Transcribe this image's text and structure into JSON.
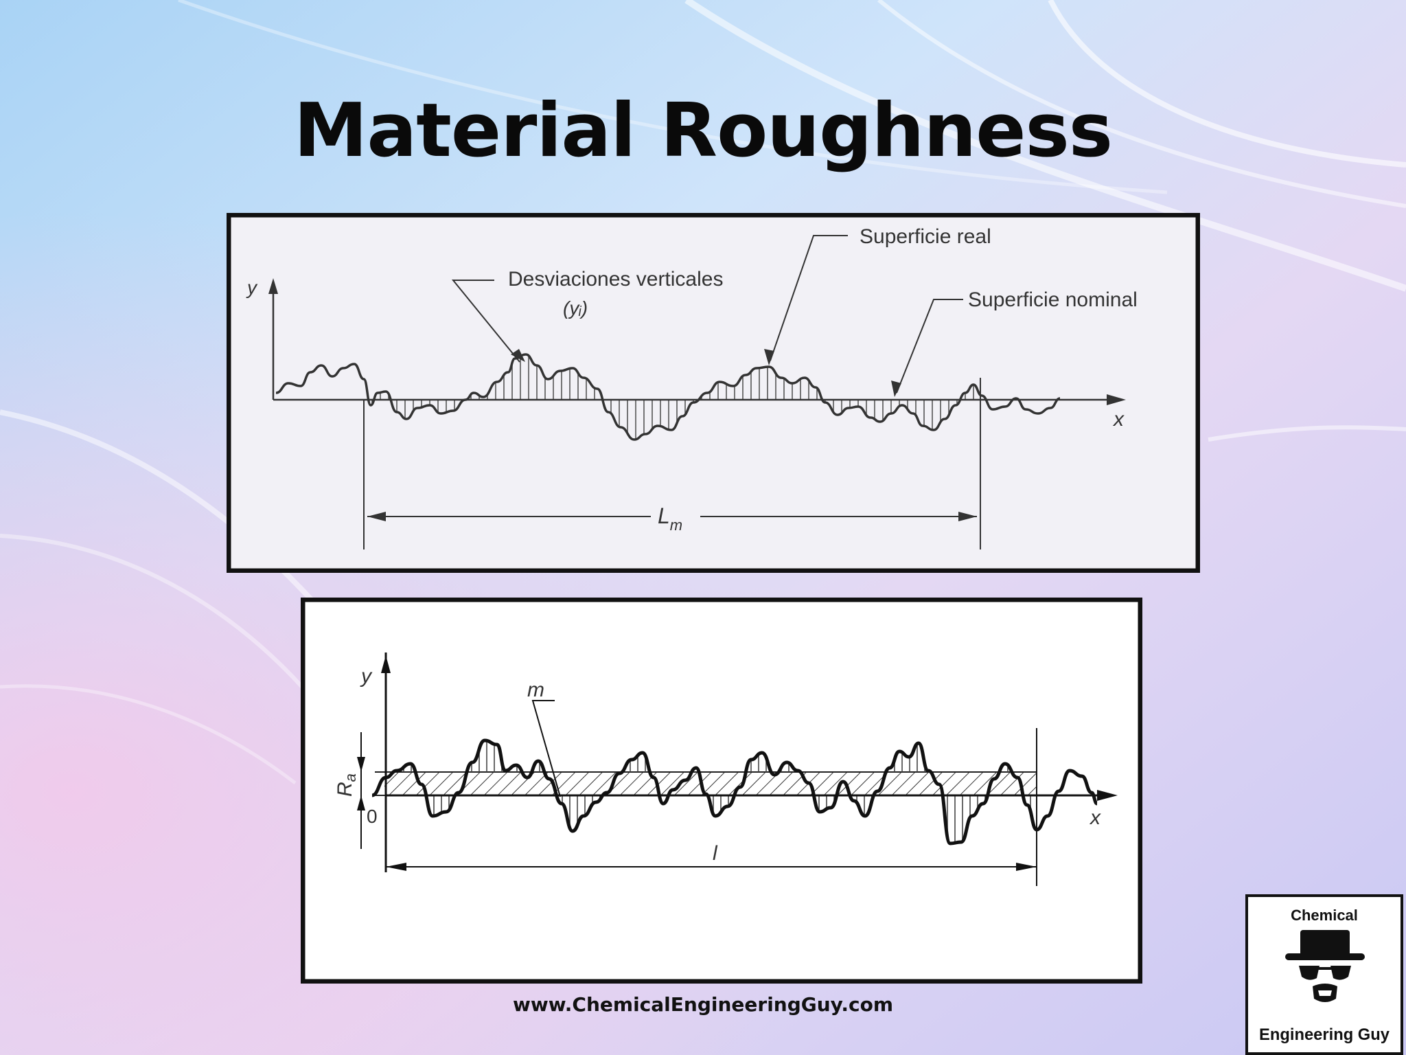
{
  "slide": {
    "title": "Material Roughness",
    "footer_url": "www.ChemicalEngineeringGuy.com"
  },
  "figure_top": {
    "y_axis_label": "y",
    "x_axis_label": "x",
    "label_vertical_deviations": "Desviaciones verticales",
    "label_vertical_deviations_symbol": "(yᵢ)",
    "label_real_surface": "Superficie real",
    "label_nominal_surface": "Superficie nominal",
    "length_label": "L",
    "length_label_sub": "m"
  },
  "figure_bottom": {
    "y_axis_label": "y",
    "x_axis_label": "x",
    "mean_line_label": "m",
    "ra_label": "R",
    "ra_label_sub": "a",
    "origin_label": "0",
    "length_label": "l"
  },
  "logo": {
    "line1": "Chemical",
    "line2": "Engineering Guy"
  },
  "colors": {
    "frame": "#111111",
    "panel_top": "#f2f1f6",
    "panel_bottom": "#ffffff",
    "ink": "#333333"
  }
}
